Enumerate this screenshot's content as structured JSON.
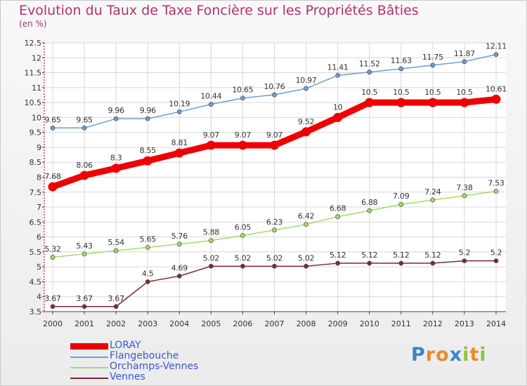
{
  "title": "Evolution du Taux de Taxe Foncière sur les Propriétés Bâties",
  "unit_label": "(en %)",
  "logo": {
    "text": "Proxiti",
    "letters": [
      {
        "ch": "P",
        "color": "#3a87c8"
      },
      {
        "ch": "r",
        "color": "#f08a24"
      },
      {
        "ch": "o",
        "color": "#f08a24"
      },
      {
        "ch": "x",
        "color": "#3a87c8"
      },
      {
        "ch": "i",
        "color": "#8cc63f"
      },
      {
        "ch": "t",
        "color": "#f08a24"
      },
      {
        "ch": "i",
        "color": "#8cc63f"
      }
    ]
  },
  "chart_data": {
    "type": "line",
    "x": [
      "2000",
      "2001",
      "2002",
      "2003",
      "2004",
      "2005",
      "2006",
      "2007",
      "2008",
      "2009",
      "2010",
      "2011",
      "2012",
      "2013",
      "2014"
    ],
    "ylim": [
      3.5,
      12.5
    ],
    "yticks": [
      "3.5",
      "4",
      "4.5",
      "5",
      "5.5",
      "6",
      "6.5",
      "7",
      "7.5",
      "8",
      "8.5",
      "9",
      "9.5",
      "10",
      "10.5",
      "11",
      "11.5",
      "12",
      "12.5"
    ],
    "grid": true,
    "legend_position": "bottom-left",
    "series": [
      {
        "name": "Flangebouche",
        "color": "#6a9ed6",
        "values": [
          9.65,
          9.65,
          9.96,
          9.96,
          10.19,
          10.44,
          10.65,
          10.76,
          10.97,
          11.41,
          11.52,
          11.63,
          11.75,
          11.87,
          12.11
        ],
        "labels": [
          "9.65",
          "9.65",
          "9.96",
          "9.96",
          "10.19",
          "10.44",
          "10.65",
          "10.76",
          "10.97",
          "11.41",
          "11.52",
          "11.63",
          "11.75",
          "11.87",
          "12.11"
        ]
      },
      {
        "name": "Orchamps-Vennes",
        "color": "#a4dc6c",
        "values": [
          5.32,
          5.43,
          5.54,
          5.65,
          5.76,
          5.88,
          6.05,
          6.23,
          6.42,
          6.68,
          6.88,
          7.09,
          7.24,
          7.38,
          7.53
        ],
        "labels": [
          "5.32",
          "5.43",
          "5.54",
          "5.65",
          "5.76",
          "5.88",
          "6.05",
          "6.23",
          "6.42",
          "6.68",
          "6.88",
          "7.09",
          "7.24",
          "7.38",
          "7.53"
        ]
      },
      {
        "name": "Vennes",
        "color": "#7a2a2a",
        "values": [
          3.67,
          3.67,
          3.67,
          4.5,
          4.69,
          5.02,
          5.02,
          5.02,
          5.02,
          5.12,
          5.12,
          5.12,
          5.12,
          5.2,
          5.2
        ],
        "labels": [
          "3.67",
          "3.67",
          "3.67",
          "4.5",
          "4.69",
          "5.02",
          "5.02",
          "5.02",
          "5.02",
          "5.12",
          "5.12",
          "5.12",
          "5.12",
          "5.2",
          "5.2"
        ]
      },
      {
        "name": "LORAY",
        "color": "#ee0000",
        "highlight": true,
        "values": [
          7.68,
          8.06,
          8.3,
          8.55,
          8.81,
          9.07,
          9.07,
          9.07,
          9.52,
          10,
          10.5,
          10.5,
          10.5,
          10.5,
          10.61
        ],
        "labels": [
          "7.68",
          "8.06",
          "8.3",
          "8.55",
          "8.81",
          "9.07",
          "9.07",
          "9.07",
          "9.52",
          "10",
          "10.5",
          "10.5",
          "10.5",
          "10.5",
          "10.61"
        ]
      }
    ],
    "legend": [
      "LORAY",
      "Flangebouche",
      "Orchamps-Vennes",
      "Vennes"
    ]
  }
}
